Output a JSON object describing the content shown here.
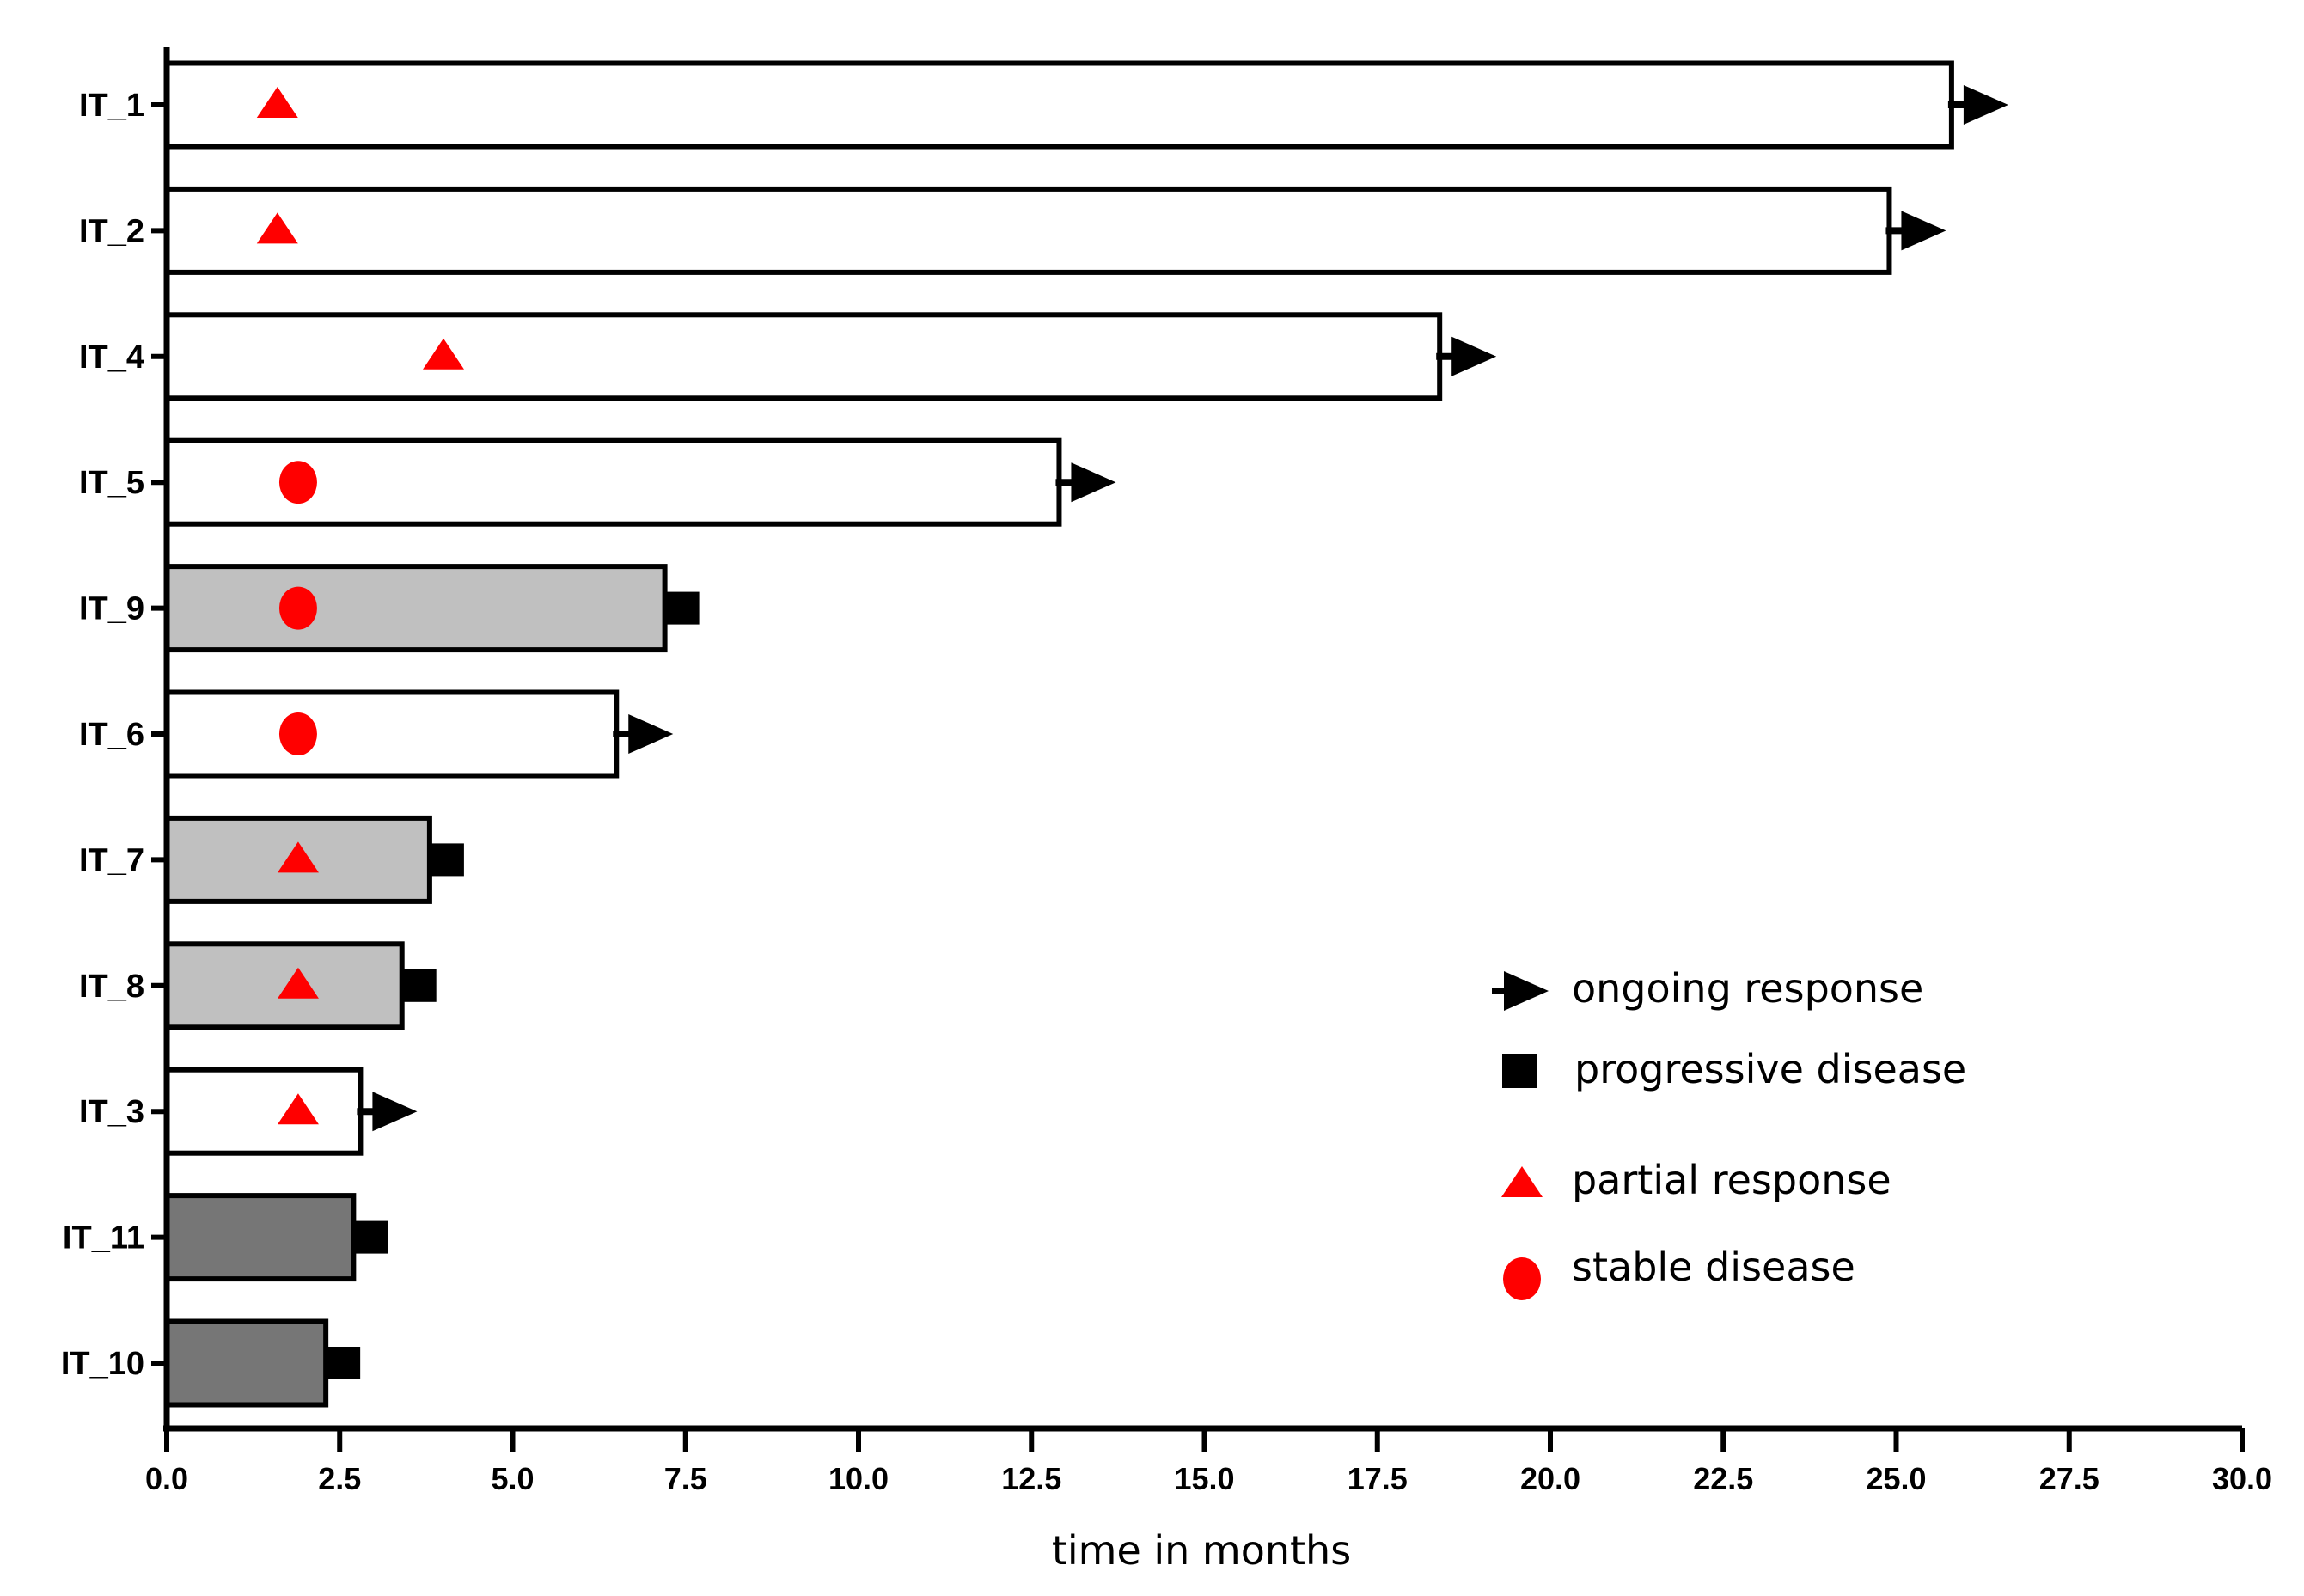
{
  "chart_data": {
    "type": "bar",
    "orientation": "horizontal",
    "title": "",
    "xlabel": "time in months",
    "ylabel": "",
    "xlim": [
      0,
      30
    ],
    "x_ticks": [
      "0.0",
      "2.5",
      "5.0",
      "7.5",
      "10.0",
      "12.5",
      "15.0",
      "17.5",
      "20.0",
      "22.5",
      "25.0",
      "27.5",
      "30.0"
    ],
    "grid": false,
    "legend_position": "bottom-right",
    "colors": {
      "ongoing_fill": "#ffffff",
      "progressive_fill": "#c0c0c0",
      "dark_fill": "#767676",
      "marker": "#ff0000",
      "end_marker": "#000000"
    },
    "bars": [
      {
        "patient": "IT_1",
        "value": 25.8,
        "fill": "white",
        "end": "ongoing",
        "response": "partial",
        "response_time": 1.6
      },
      {
        "patient": "IT_2",
        "value": 24.9,
        "fill": "white",
        "end": "ongoing",
        "response": "partial",
        "response_time": 1.6
      },
      {
        "patient": "IT_4",
        "value": 18.4,
        "fill": "white",
        "end": "ongoing",
        "response": "partial",
        "response_time": 4.0
      },
      {
        "patient": "IT_5",
        "value": 12.9,
        "fill": "white",
        "end": "ongoing",
        "response": "stable",
        "response_time": 1.9
      },
      {
        "patient": "IT_9",
        "value": 7.2,
        "fill": "light",
        "end": "progressive",
        "response": "stable",
        "response_time": 1.9
      },
      {
        "patient": "IT_6",
        "value": 6.5,
        "fill": "white",
        "end": "ongoing",
        "response": "stable",
        "response_time": 1.9
      },
      {
        "patient": "IT_7",
        "value": 3.8,
        "fill": "light",
        "end": "progressive",
        "response": "partial",
        "response_time": 1.9
      },
      {
        "patient": "IT_8",
        "value": 3.4,
        "fill": "light",
        "end": "progressive",
        "response": "partial",
        "response_time": 1.9
      },
      {
        "patient": "IT_3",
        "value": 2.8,
        "fill": "white",
        "end": "ongoing",
        "response": "partial",
        "response_time": 1.9
      },
      {
        "patient": "IT_11",
        "value": 2.7,
        "fill": "dark",
        "end": "progressive",
        "response": "none",
        "response_time": null
      },
      {
        "patient": "IT_10",
        "value": 2.3,
        "fill": "dark",
        "end": "progressive",
        "response": "none",
        "response_time": null
      }
    ],
    "legend": [
      {
        "symbol": "arrow",
        "label": "ongoing response"
      },
      {
        "symbol": "square",
        "label": "progressive disease"
      },
      {
        "symbol": "triangle",
        "label": "partial response"
      },
      {
        "symbol": "circle",
        "label": "stable disease"
      }
    ]
  }
}
